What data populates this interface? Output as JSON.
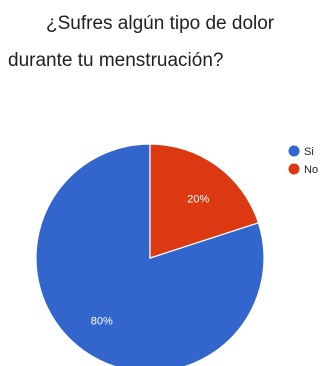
{
  "chart_data": {
    "type": "pie",
    "title_lines": [
      "¿Sufres algún tipo de dolor",
      "durante tu menstruación?"
    ],
    "legend_position": "right",
    "slices": [
      {
        "label": "Si",
        "value": 80,
        "display": "80%",
        "color": "#3366cc"
      },
      {
        "label": "No",
        "value": 20,
        "display": "20%",
        "color": "#dc3912"
      }
    ]
  }
}
